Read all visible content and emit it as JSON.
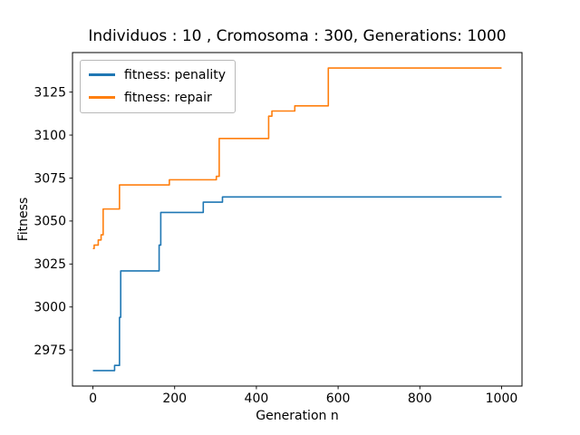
{
  "chart_data": {
    "type": "line",
    "line_style": "step-post",
    "title": "Individuos : 10 , Cromosoma : 300, Generations: 1000",
    "xlabel": "Generation n",
    "ylabel": "Fitness",
    "xticks": [
      0,
      200,
      400,
      600,
      800,
      1000
    ],
    "yticks": [
      2975,
      3000,
      3025,
      3050,
      3075,
      3100,
      3125
    ],
    "xlim": [
      -50,
      1050
    ],
    "ylim": [
      2954,
      3148
    ],
    "grid": false,
    "legend_position": "upper left",
    "axes_color": "#000000",
    "background_color": "#ffffff",
    "series": [
      {
        "name": "fitness: penality",
        "color": "#1f77b4",
        "points": [
          [
            0,
            2963
          ],
          [
            53,
            2966
          ],
          [
            65,
            2994
          ],
          [
            68,
            3021
          ],
          [
            162,
            3036
          ],
          [
            166,
            3055
          ],
          [
            270,
            3061
          ],
          [
            317,
            3064
          ],
          [
            1000,
            3064
          ]
        ]
      },
      {
        "name": "fitness: repair",
        "color": "#ff7f0e",
        "points": [
          [
            0,
            3034
          ],
          [
            3,
            3036
          ],
          [
            13,
            3039
          ],
          [
            20,
            3042
          ],
          [
            25,
            3057
          ],
          [
            65,
            3071
          ],
          [
            187,
            3074
          ],
          [
            302,
            3076
          ],
          [
            309,
            3098
          ],
          [
            430,
            3111
          ],
          [
            438,
            3114
          ],
          [
            494,
            3117
          ],
          [
            576,
            3139
          ],
          [
            1000,
            3139
          ]
        ]
      }
    ]
  }
}
